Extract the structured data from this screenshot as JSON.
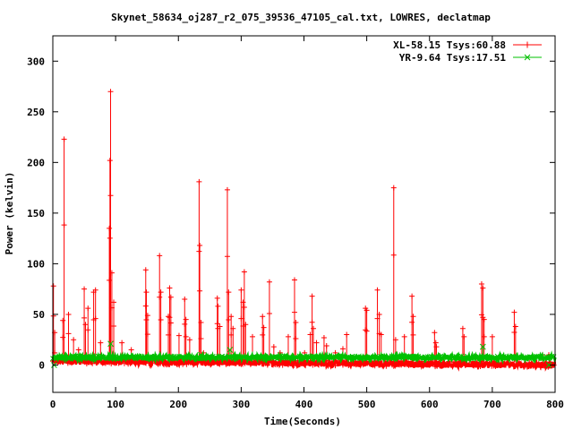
{
  "chart_data": {
    "type": "line",
    "title": "Skynet_58634_oj287_r2_075_39536_47105_cal.txt, LOWRES, declatmap",
    "xlabel": "Time(Seconds)",
    "ylabel": "Power (kelvin)",
    "xlim": [
      0,
      800
    ],
    "ylim": [
      -27,
      325
    ],
    "xticks": [
      0,
      100,
      200,
      300,
      400,
      500,
      600,
      700,
      800
    ],
    "yticks": [
      0,
      50,
      100,
      150,
      200,
      250,
      300
    ],
    "legend_position": "top-right",
    "series": [
      {
        "name": "XL-58.15 Tsys:60.88",
        "color": "#ff0000",
        "baseline_start": 4,
        "baseline_end": 0,
        "spikes": [
          [
            1,
            78
          ],
          [
            3,
            32
          ],
          [
            16,
            44
          ],
          [
            18,
            223
          ],
          [
            25,
            50
          ],
          [
            33,
            25
          ],
          [
            41,
            15
          ],
          [
            50,
            75
          ],
          [
            52,
            40
          ],
          [
            56,
            56
          ],
          [
            65,
            72
          ],
          [
            68,
            74
          ],
          [
            76,
            22
          ],
          [
            90,
            135
          ],
          [
            91,
            202
          ],
          [
            92,
            270
          ],
          [
            94,
            91
          ],
          [
            97,
            62
          ],
          [
            110,
            22
          ],
          [
            125,
            15
          ],
          [
            148,
            94
          ],
          [
            149,
            72
          ],
          [
            151,
            49
          ],
          [
            170,
            108
          ],
          [
            172,
            72
          ],
          [
            184,
            48
          ],
          [
            186,
            76
          ],
          [
            188,
            67
          ],
          [
            201,
            29
          ],
          [
            210,
            65
          ],
          [
            212,
            45
          ],
          [
            218,
            25
          ],
          [
            233,
            181
          ],
          [
            234,
            118
          ],
          [
            236,
            42
          ],
          [
            240,
            12
          ],
          [
            262,
            66
          ],
          [
            263,
            58
          ],
          [
            266,
            38
          ],
          [
            278,
            173
          ],
          [
            280,
            72
          ],
          [
            284,
            48
          ],
          [
            287,
            36
          ],
          [
            300,
            74
          ],
          [
            303,
            62
          ],
          [
            305,
            92
          ],
          [
            307,
            40
          ],
          [
            318,
            28
          ],
          [
            334,
            48
          ],
          [
            336,
            37
          ],
          [
            345,
            82
          ],
          [
            352,
            18
          ],
          [
            362,
            12
          ],
          [
            375,
            28
          ],
          [
            385,
            84
          ],
          [
            387,
            42
          ],
          [
            401,
            12
          ],
          [
            410,
            30
          ],
          [
            413,
            68
          ],
          [
            415,
            36
          ],
          [
            420,
            22
          ],
          [
            432,
            27
          ],
          [
            436,
            19
          ],
          [
            450,
            12
          ],
          [
            462,
            16
          ],
          [
            468,
            30
          ],
          [
            498,
            56
          ],
          [
            500,
            54
          ],
          [
            517,
            74
          ],
          [
            520,
            50
          ],
          [
            523,
            30
          ],
          [
            543,
            175
          ],
          [
            546,
            25
          ],
          [
            560,
            28
          ],
          [
            572,
            68
          ],
          [
            574,
            48
          ],
          [
            608,
            32
          ],
          [
            610,
            22
          ],
          [
            611,
            18
          ],
          [
            653,
            36
          ],
          [
            655,
            28
          ],
          [
            683,
            80
          ],
          [
            685,
            76
          ],
          [
            687,
            45
          ],
          [
            700,
            28
          ],
          [
            735,
            52
          ],
          [
            737,
            38
          ],
          [
            780,
            10
          ]
        ]
      },
      {
        "name": "YR-9.64 Tsys:17.51",
        "color": "#00c000",
        "baseline": 7.5,
        "spikes": [
          [
            92,
            21
          ],
          [
            236,
            10
          ],
          [
            282,
            15
          ],
          [
            685,
            18
          ]
        ]
      }
    ]
  }
}
